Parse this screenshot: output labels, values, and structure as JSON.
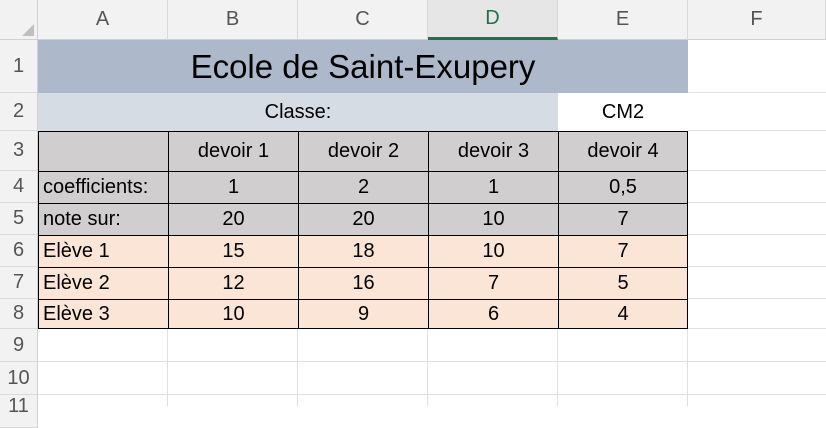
{
  "columns": [
    "A",
    "B",
    "C",
    "D",
    "E",
    "F"
  ],
  "active_column": "D",
  "rows": [
    "1",
    "2",
    "3",
    "4",
    "5",
    "6",
    "7",
    "8",
    "9",
    "10",
    "11"
  ],
  "colors": {
    "title_bg": "#adb9ca",
    "classe_bg": "#d6dce4",
    "header_bg": "#d0cece",
    "student_bg": "#fbe5d6",
    "active_header": "#217346"
  },
  "sheet": {
    "title": "Ecole de Saint-Exupery",
    "classe_label": "Classe:",
    "classe_value": "CM2",
    "devoir_headers": [
      "devoir 1",
      "devoir 2",
      "devoir 3",
      "devoir 4"
    ],
    "coefficients_label": "coefficients:",
    "coefficients": [
      "1",
      "2",
      "1",
      "0,5"
    ],
    "note_sur_label": "note sur:",
    "note_sur": [
      "20",
      "20",
      "10",
      "7"
    ],
    "students": [
      {
        "name": "Elève 1",
        "notes": [
          "15",
          "18",
          "10",
          "7"
        ]
      },
      {
        "name": "Elève 2",
        "notes": [
          "12",
          "16",
          "7",
          "5"
        ]
      },
      {
        "name": "Elève 3",
        "notes": [
          "10",
          "9",
          "6",
          "4"
        ]
      }
    ]
  }
}
